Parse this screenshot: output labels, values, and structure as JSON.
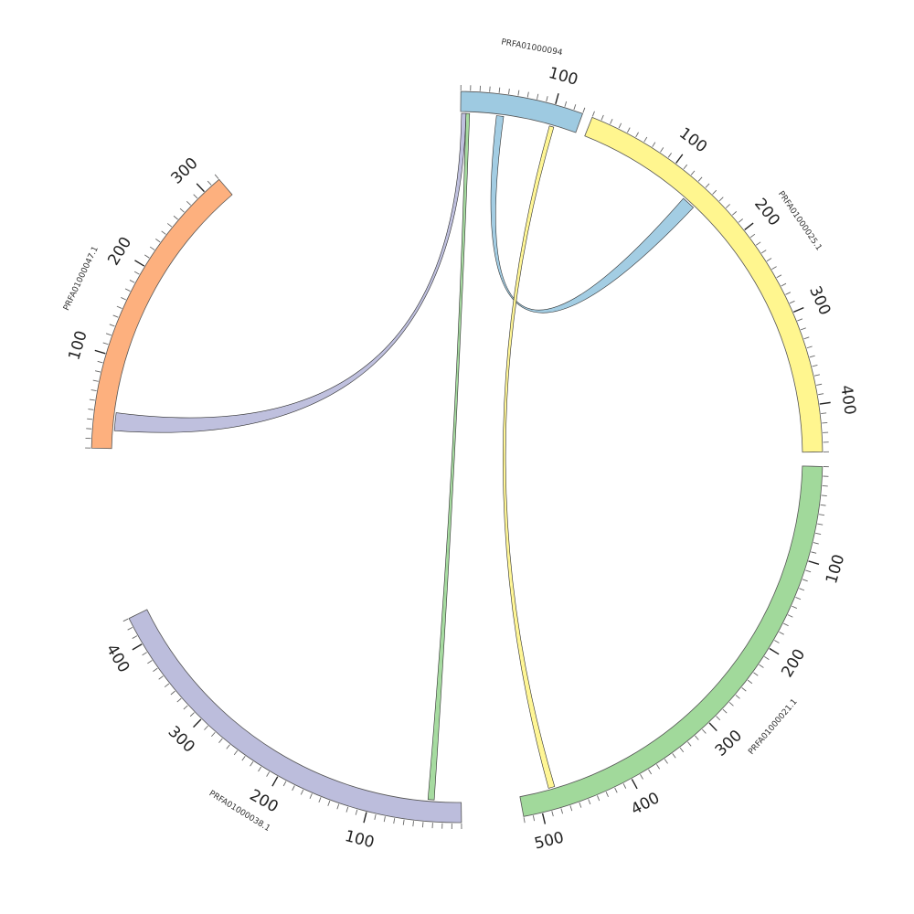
{
  "chart_data": {
    "type": "chord",
    "segments": [
      {
        "id": "PRFA01000094",
        "label": "PRFA01000094",
        "length": 130,
        "color": "#9ecae1",
        "major_ticks": [
          100
        ]
      },
      {
        "id": "PRFA01000025.1",
        "label": "PRFA01000025.1",
        "length": 450,
        "color": "#fff68f",
        "major_ticks": [
          100,
          200,
          300,
          400
        ]
      },
      {
        "id": "PRFA01000021.1",
        "label": "PRFA01000021.1",
        "length": 520,
        "color": "#a1d99b",
        "major_ticks": [
          100,
          200,
          300,
          400,
          500
        ]
      },
      {
        "id": "PRFA01000038.1",
        "label": "PRFA01000038.1",
        "length": 430,
        "color": "#bcbddc",
        "major_ticks": [
          100,
          200,
          300,
          400
        ]
      },
      {
        "id": "PRFA01000047.1",
        "label": "PRFA01000047.1",
        "length": 320,
        "color": "#fdb07e",
        "major_ticks": [
          100,
          200,
          300
        ]
      }
    ],
    "links": [
      {
        "source": {
          "segment": "PRFA01000094",
          "start": 40,
          "end": 48
        },
        "target": {
          "segment": "PRFA01000025.1",
          "start": 130,
          "end": 145
        },
        "color": "#9ecae1"
      },
      {
        "source": {
          "segment": "PRFA01000094",
          "start": 100,
          "end": 105
        },
        "target": {
          "segment": "PRFA01000021.1",
          "start": 480,
          "end": 487
        },
        "color": "#fff68f"
      },
      {
        "source": {
          "segment": "PRFA01000094",
          "start": 6,
          "end": 10
        },
        "target": {
          "segment": "PRFA01000038.1",
          "start": 30,
          "end": 37
        },
        "color": "#a1d99b"
      },
      {
        "source": {
          "segment": "PRFA01000094",
          "start": 1,
          "end": 6
        },
        "target": {
          "segment": "PRFA01000047.1",
          "start": 20,
          "end": 40
        },
        "color": "#bcbddc"
      }
    ],
    "tick_interval": 10,
    "major_tick_interval": 100
  }
}
